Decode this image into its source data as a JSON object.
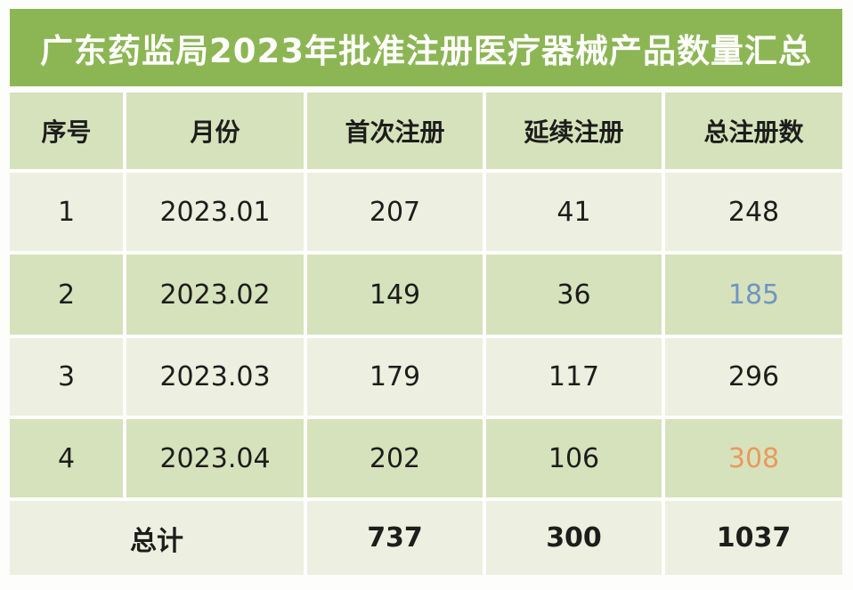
{
  "title": "广东药监局2023年批准注册医疗器械产品数量汇总",
  "chart_data": {
    "type": "table",
    "title": "广东药监局2023年批准注册医疗器械产品数量汇总",
    "columns": [
      "序号",
      "月份",
      "首次注册",
      "延续注册",
      "总注册数"
    ],
    "rows": [
      [
        "1",
        "2023.01",
        "207",
        "41",
        "248"
      ],
      [
        "2",
        "2023.02",
        "149",
        "36",
        "185"
      ],
      [
        "3",
        "2023.03",
        "179",
        "117",
        "296"
      ],
      [
        "4",
        "2023.04",
        "202",
        "106",
        "308"
      ]
    ],
    "footer": {
      "label": "总计",
      "first_registration_total": "737",
      "renewal_registration_total": "300",
      "grand_total": "1037"
    },
    "highlights": [
      {
        "row": 2,
        "column": "总注册数",
        "value": "185",
        "color": "#7094c4"
      },
      {
        "row": 4,
        "column": "总注册数",
        "value": "308",
        "color": "#e9995c"
      }
    ]
  },
  "colors": {
    "title_banner_green": "#8cb654",
    "title_text": "#ffffff",
    "header_and_green_row": "#d6e2bb",
    "light_row": "#edefe0",
    "body_text": "#1d1d1b",
    "accent_blue": "#7094c4",
    "accent_orange": "#e9995c"
  }
}
